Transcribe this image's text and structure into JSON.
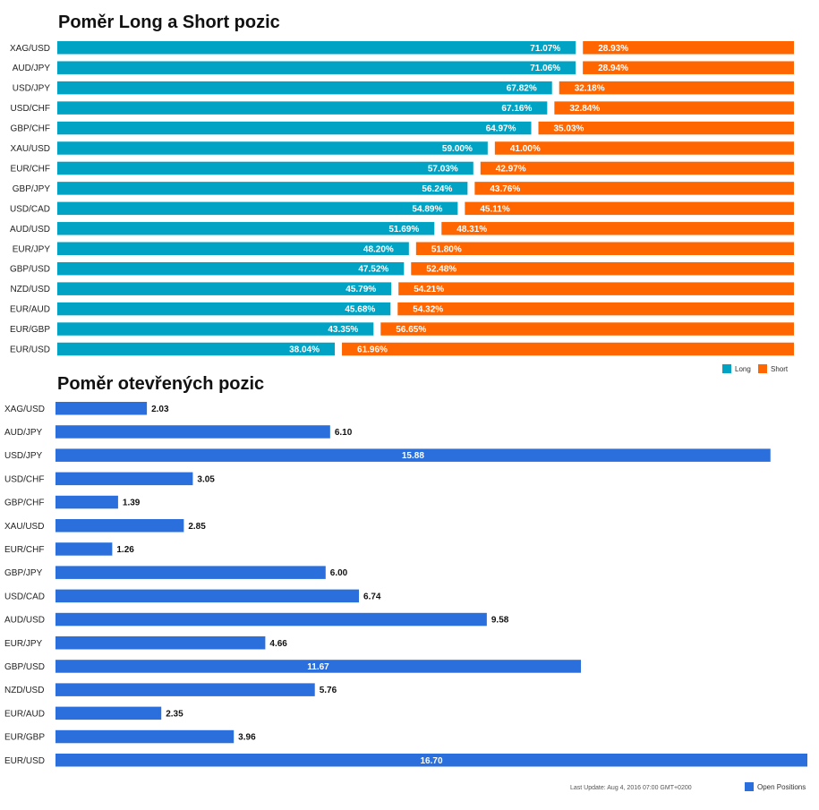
{
  "chart_data": [
    {
      "type": "bar",
      "title": "Poměr Long a Short pozic",
      "stacked": true,
      "orientation": "horizontal",
      "categories": [
        "XAG/USD",
        "AUD/JPY",
        "USD/JPY",
        "USD/CHF",
        "GBP/CHF",
        "XAU/USD",
        "EUR/CHF",
        "GBP/JPY",
        "USD/CAD",
        "AUD/USD",
        "EUR/JPY",
        "GBP/USD",
        "NZD/USD",
        "EUR/AUD",
        "EUR/GBP",
        "EUR/USD"
      ],
      "series": [
        {
          "name": "Long",
          "color": "#00a3c4",
          "values": [
            71.07,
            71.06,
            67.82,
            67.16,
            64.97,
            59.0,
            57.03,
            56.24,
            54.89,
            51.69,
            48.2,
            47.52,
            45.79,
            45.68,
            43.35,
            38.04
          ]
        },
        {
          "name": "Short",
          "color": "#ff6600",
          "values": [
            28.93,
            28.94,
            32.18,
            32.84,
            35.03,
            41.0,
            42.97,
            43.76,
            45.11,
            48.31,
            51.8,
            52.48,
            54.21,
            54.32,
            56.65,
            61.96
          ]
        }
      ],
      "value_labels": {
        "long": [
          "71.07%",
          "71.06%",
          "67.82%",
          "67.16%",
          "64.97%",
          "59.00%",
          "57.03%",
          "56.24%",
          "54.89%",
          "51.69%",
          "48.20%",
          "47.52%",
          "45.79%",
          "45.68%",
          "43.35%",
          "38.04%"
        ],
        "short": [
          "28.93%",
          "28.94%",
          "32.18%",
          "32.84%",
          "35.03%",
          "41.00%",
          "42.97%",
          "43.76%",
          "45.11%",
          "48.31%",
          "51.80%",
          "52.48%",
          "54.21%",
          "54.32%",
          "56.65%",
          "61.96%"
        ]
      },
      "legend": [
        "Long",
        "Short"
      ],
      "legend_position": "bottom-right"
    },
    {
      "type": "bar",
      "title": "Poměr otevřených pozic",
      "orientation": "horizontal",
      "categories": [
        "XAG/USD",
        "AUD/JPY",
        "USD/JPY",
        "USD/CHF",
        "GBP/CHF",
        "XAU/USD",
        "EUR/CHF",
        "GBP/JPY",
        "USD/CAD",
        "AUD/USD",
        "EUR/JPY",
        "GBP/USD",
        "NZD/USD",
        "EUR/AUD",
        "EUR/GBP",
        "EUR/USD"
      ],
      "series": [
        {
          "name": "Open Positions",
          "color": "#2a6fdb",
          "values": [
            2.03,
            6.1,
            15.88,
            3.05,
            1.39,
            2.85,
            1.26,
            6.0,
            6.74,
            9.58,
            4.66,
            11.67,
            5.76,
            2.35,
            3.96,
            16.7
          ]
        }
      ],
      "value_labels": [
        "2.03",
        "6.10",
        "15.88",
        "3.05",
        "1.39",
        "2.85",
        "1.26",
        "6.00",
        "6.74",
        "9.58",
        "4.66",
        "11.67",
        "5.76",
        "2.35",
        "3.96",
        "16.70"
      ],
      "legend": [
        "Open Positions"
      ],
      "legend_position": "bottom-right",
      "footnote": "Last Update: Aug 4, 2016 07:00 GMT+0200"
    }
  ]
}
